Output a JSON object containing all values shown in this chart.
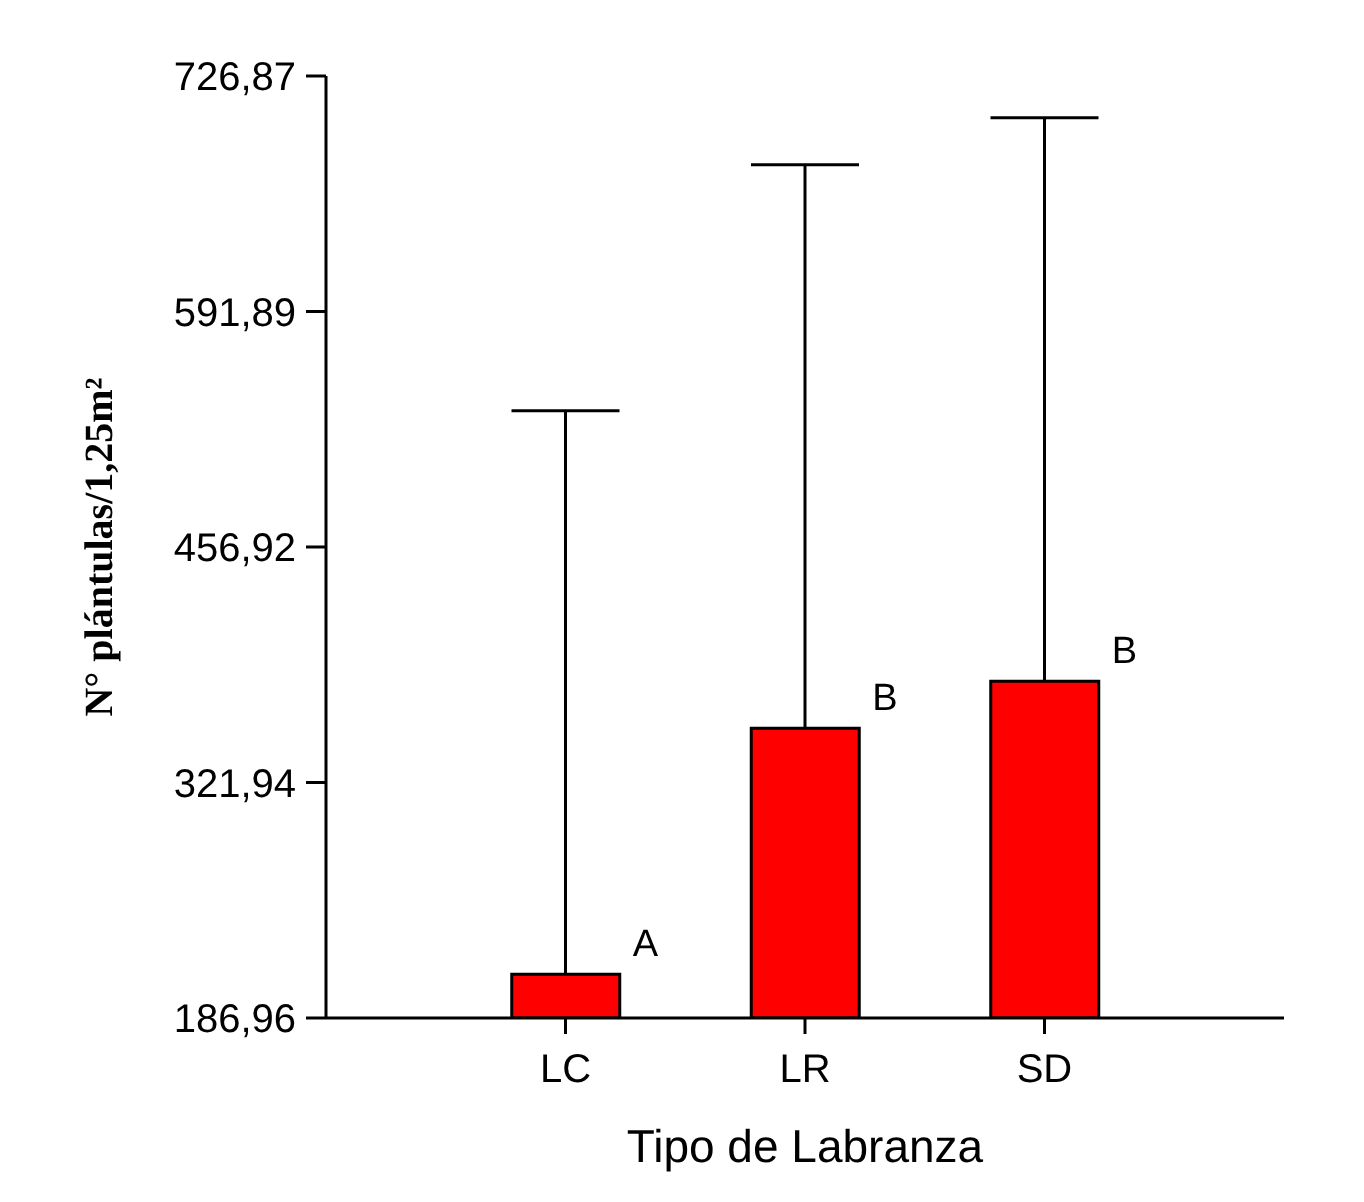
{
  "chart_data": {
    "type": "bar",
    "xlabel": "Tipo de Labranza",
    "ylabel": "N° plántulas/1,25m²",
    "categories": [
      "LC",
      "LR",
      "SD"
    ],
    "values": [
      212,
      353,
      380
    ],
    "color": "#ff0000",
    "errors": [
      [
        212,
        535
      ],
      [
        353,
        676
      ],
      [
        380,
        703
      ]
    ],
    "ylim": [
      186.96,
      726.87
    ],
    "yticks": [
      {
        "value": 186.96,
        "label": "186,96"
      },
      {
        "value": 321.94,
        "label": "321,94"
      },
      {
        "value": 456.92,
        "label": "456,92"
      },
      {
        "value": 591.89,
        "label": "591,89"
      },
      {
        "value": 726.87,
        "label": "726,87"
      }
    ],
    "annotations": [
      {
        "text": "A",
        "x": "LC",
        "y": 212
      },
      {
        "text": "B",
        "x": "LR",
        "y": 353
      },
      {
        "text": "B",
        "x": "SD",
        "y": 380
      }
    ]
  }
}
